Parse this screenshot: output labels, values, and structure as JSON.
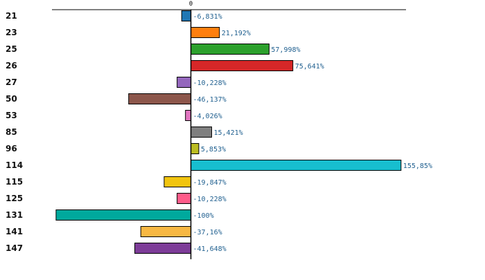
{
  "chart_data": {
    "type": "bar",
    "orientation": "horizontal",
    "categories": [
      "21",
      "23",
      "25",
      "26",
      "27",
      "50",
      "53",
      "85",
      "96",
      "114",
      "115",
      "125",
      "131",
      "141",
      "147"
    ],
    "values": [
      -6.831,
      21.192,
      57.998,
      75.641,
      -10.228,
      -46.137,
      -4.026,
      15.421,
      5.853,
      155.85,
      -19.847,
      -10.228,
      -100,
      -37.16,
      -41.648
    ],
    "value_labels": [
      "-6,831%",
      "21,192%",
      "57,998%",
      "75,641%",
      "-10,228%",
      "-46,137%",
      "-4,026%",
      "15,421%",
      "5,853%",
      "155,85%",
      "-19,847%",
      "-10,228%",
      "-100%",
      "-37,16%",
      "-41,648%"
    ],
    "colors": [
      "#1f77b4",
      "#ff7f0e",
      "#2ca02c",
      "#d62728",
      "#9467bd",
      "#8c564b",
      "#e377c2",
      "#7f7f7f",
      "#bcbd22",
      "#17becf",
      "#f1c40f",
      "#ff5c8a",
      "#00a99d",
      "#f7b844",
      "#7d3c98"
    ],
    "highlight_category": "96",
    "highlight_color": "#cc0000",
    "top_tick_label": "0",
    "xlim": [
      -100,
      158
    ],
    "title": "",
    "xlabel": "",
    "ylabel": "",
    "grid": false,
    "legend": "none"
  }
}
